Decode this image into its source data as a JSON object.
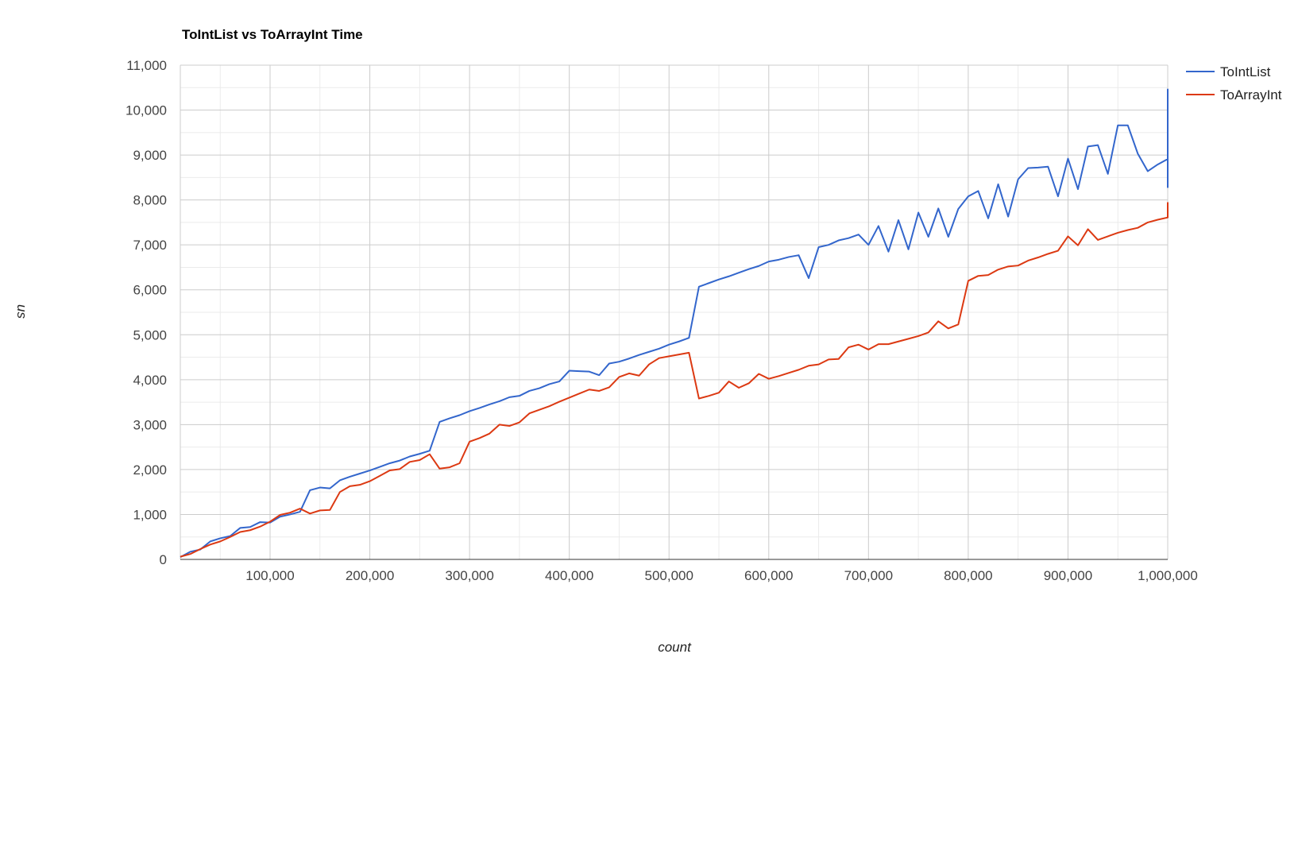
{
  "chart_data": {
    "type": "line",
    "title": "ToIntList vs ToArrayInt Time",
    "xlabel": "count",
    "ylabel": "us",
    "xlim": [
      10000,
      1000000
    ],
    "ylim": [
      0,
      11000
    ],
    "grid": true,
    "legend_position": "right",
    "x_ticks": [
      100000,
      200000,
      300000,
      400000,
      500000,
      600000,
      700000,
      800000,
      900000,
      1000000
    ],
    "x_tick_labels": [
      "100,000",
      "200,000",
      "300,000",
      "400,000",
      "500,000",
      "600,000",
      "700,000",
      "800,000",
      "900,000",
      "1,000,000"
    ],
    "y_ticks": [
      0,
      1000,
      2000,
      3000,
      4000,
      5000,
      6000,
      7000,
      8000,
      9000,
      10000,
      11000
    ],
    "y_tick_labels": [
      "0",
      "1,000",
      "2,000",
      "3,000",
      "4,000",
      "5,000",
      "6,000",
      "7,000",
      "8,000",
      "9,000",
      "10,000",
      "11,000"
    ],
    "colors": {
      "ToIntList": "#3366cc",
      "ToArrayInt": "#dc3912"
    },
    "series": [
      {
        "name": "ToIntList",
        "points": [
          [
            10000,
            50
          ],
          [
            20000,
            170
          ],
          [
            30000,
            220
          ],
          [
            40000,
            400
          ],
          [
            50000,
            470
          ],
          [
            60000,
            520
          ],
          [
            70000,
            700
          ],
          [
            80000,
            720
          ],
          [
            90000,
            830
          ],
          [
            100000,
            820
          ],
          [
            110000,
            950
          ],
          [
            120000,
            1000
          ],
          [
            130000,
            1060
          ],
          [
            140000,
            1540
          ],
          [
            150000,
            1600
          ],
          [
            160000,
            1580
          ],
          [
            170000,
            1760
          ],
          [
            180000,
            1840
          ],
          [
            190000,
            1910
          ],
          [
            200000,
            1980
          ],
          [
            210000,
            2060
          ],
          [
            220000,
            2140
          ],
          [
            230000,
            2200
          ],
          [
            240000,
            2290
          ],
          [
            250000,
            2350
          ],
          [
            260000,
            2420
          ],
          [
            270000,
            3060
          ],
          [
            280000,
            3140
          ],
          [
            290000,
            3210
          ],
          [
            300000,
            3300
          ],
          [
            310000,
            3370
          ],
          [
            320000,
            3450
          ],
          [
            330000,
            3520
          ],
          [
            340000,
            3610
          ],
          [
            350000,
            3640
          ],
          [
            360000,
            3750
          ],
          [
            370000,
            3810
          ],
          [
            380000,
            3900
          ],
          [
            390000,
            3960
          ],
          [
            400000,
            4200
          ],
          [
            410000,
            4190
          ],
          [
            420000,
            4180
          ],
          [
            430000,
            4100
          ],
          [
            440000,
            4360
          ],
          [
            450000,
            4400
          ],
          [
            460000,
            4470
          ],
          [
            470000,
            4550
          ],
          [
            480000,
            4620
          ],
          [
            490000,
            4690
          ],
          [
            500000,
            4780
          ],
          [
            510000,
            4850
          ],
          [
            520000,
            4930
          ],
          [
            530000,
            6070
          ],
          [
            540000,
            6150
          ],
          [
            550000,
            6230
          ],
          [
            560000,
            6300
          ],
          [
            570000,
            6380
          ],
          [
            580000,
            6460
          ],
          [
            590000,
            6530
          ],
          [
            600000,
            6630
          ],
          [
            610000,
            6670
          ],
          [
            620000,
            6730
          ],
          [
            630000,
            6770
          ],
          [
            640000,
            6260
          ],
          [
            650000,
            6950
          ],
          [
            660000,
            7000
          ],
          [
            670000,
            7100
          ],
          [
            680000,
            7150
          ],
          [
            690000,
            7230
          ],
          [
            700000,
            7000
          ],
          [
            710000,
            7420
          ],
          [
            720000,
            6850
          ],
          [
            730000,
            7550
          ],
          [
            740000,
            6900
          ],
          [
            750000,
            7720
          ],
          [
            760000,
            7180
          ],
          [
            770000,
            7810
          ],
          [
            780000,
            7180
          ],
          [
            790000,
            7800
          ],
          [
            800000,
            8080
          ],
          [
            810000,
            8200
          ],
          [
            820000,
            7590
          ],
          [
            830000,
            8350
          ],
          [
            840000,
            7630
          ],
          [
            850000,
            8460
          ],
          [
            860000,
            8710
          ],
          [
            870000,
            8720
          ],
          [
            880000,
            8740
          ],
          [
            890000,
            8080
          ],
          [
            900000,
            8920
          ],
          [
            910000,
            8240
          ],
          [
            920000,
            9190
          ],
          [
            930000,
            9220
          ],
          [
            940000,
            8580
          ],
          [
            950000,
            9660
          ],
          [
            960000,
            9660
          ],
          [
            970000,
            9030
          ],
          [
            980000,
            8640
          ],
          [
            990000,
            8790
          ],
          [
            1000000,
            8910
          ],
          [
            1000000,
            10460
          ],
          [
            1000000,
            8270
          ]
        ]
      },
      {
        "name": "ToArrayInt",
        "points": [
          [
            10000,
            60
          ],
          [
            20000,
            120
          ],
          [
            30000,
            230
          ],
          [
            40000,
            330
          ],
          [
            50000,
            400
          ],
          [
            60000,
            500
          ],
          [
            70000,
            610
          ],
          [
            80000,
            650
          ],
          [
            90000,
            730
          ],
          [
            100000,
            840
          ],
          [
            110000,
            990
          ],
          [
            120000,
            1040
          ],
          [
            130000,
            1130
          ],
          [
            140000,
            1020
          ],
          [
            150000,
            1090
          ],
          [
            160000,
            1100
          ],
          [
            170000,
            1500
          ],
          [
            180000,
            1630
          ],
          [
            190000,
            1660
          ],
          [
            200000,
            1740
          ],
          [
            210000,
            1860
          ],
          [
            220000,
            1980
          ],
          [
            230000,
            2010
          ],
          [
            240000,
            2170
          ],
          [
            250000,
            2210
          ],
          [
            260000,
            2340
          ],
          [
            270000,
            2020
          ],
          [
            280000,
            2050
          ],
          [
            290000,
            2140
          ],
          [
            300000,
            2620
          ],
          [
            310000,
            2700
          ],
          [
            320000,
            2800
          ],
          [
            330000,
            3000
          ],
          [
            340000,
            2970
          ],
          [
            350000,
            3050
          ],
          [
            360000,
            3250
          ],
          [
            370000,
            3330
          ],
          [
            380000,
            3410
          ],
          [
            390000,
            3510
          ],
          [
            400000,
            3600
          ],
          [
            410000,
            3690
          ],
          [
            420000,
            3780
          ],
          [
            430000,
            3750
          ],
          [
            440000,
            3830
          ],
          [
            450000,
            4060
          ],
          [
            460000,
            4140
          ],
          [
            470000,
            4090
          ],
          [
            480000,
            4340
          ],
          [
            490000,
            4480
          ],
          [
            500000,
            4520
          ],
          [
            510000,
            4560
          ],
          [
            520000,
            4600
          ],
          [
            530000,
            3580
          ],
          [
            540000,
            3640
          ],
          [
            550000,
            3710
          ],
          [
            560000,
            3960
          ],
          [
            570000,
            3820
          ],
          [
            580000,
            3920
          ],
          [
            590000,
            4130
          ],
          [
            600000,
            4020
          ],
          [
            610000,
            4080
          ],
          [
            620000,
            4150
          ],
          [
            630000,
            4220
          ],
          [
            640000,
            4310
          ],
          [
            650000,
            4340
          ],
          [
            660000,
            4450
          ],
          [
            670000,
            4460
          ],
          [
            680000,
            4720
          ],
          [
            690000,
            4780
          ],
          [
            700000,
            4670
          ],
          [
            710000,
            4790
          ],
          [
            720000,
            4790
          ],
          [
            730000,
            4850
          ],
          [
            740000,
            4910
          ],
          [
            750000,
            4970
          ],
          [
            760000,
            5050
          ],
          [
            770000,
            5300
          ],
          [
            780000,
            5140
          ],
          [
            790000,
            5230
          ],
          [
            800000,
            6200
          ],
          [
            810000,
            6310
          ],
          [
            820000,
            6330
          ],
          [
            830000,
            6450
          ],
          [
            840000,
            6520
          ],
          [
            850000,
            6540
          ],
          [
            860000,
            6650
          ],
          [
            870000,
            6720
          ],
          [
            880000,
            6800
          ],
          [
            890000,
            6870
          ],
          [
            900000,
            7190
          ],
          [
            910000,
            6990
          ],
          [
            920000,
            7350
          ],
          [
            930000,
            7110
          ],
          [
            940000,
            7190
          ],
          [
            950000,
            7270
          ],
          [
            960000,
            7330
          ],
          [
            970000,
            7380
          ],
          [
            980000,
            7500
          ],
          [
            990000,
            7560
          ],
          [
            1000000,
            7610
          ],
          [
            1000000,
            7950
          ]
        ]
      }
    ]
  }
}
